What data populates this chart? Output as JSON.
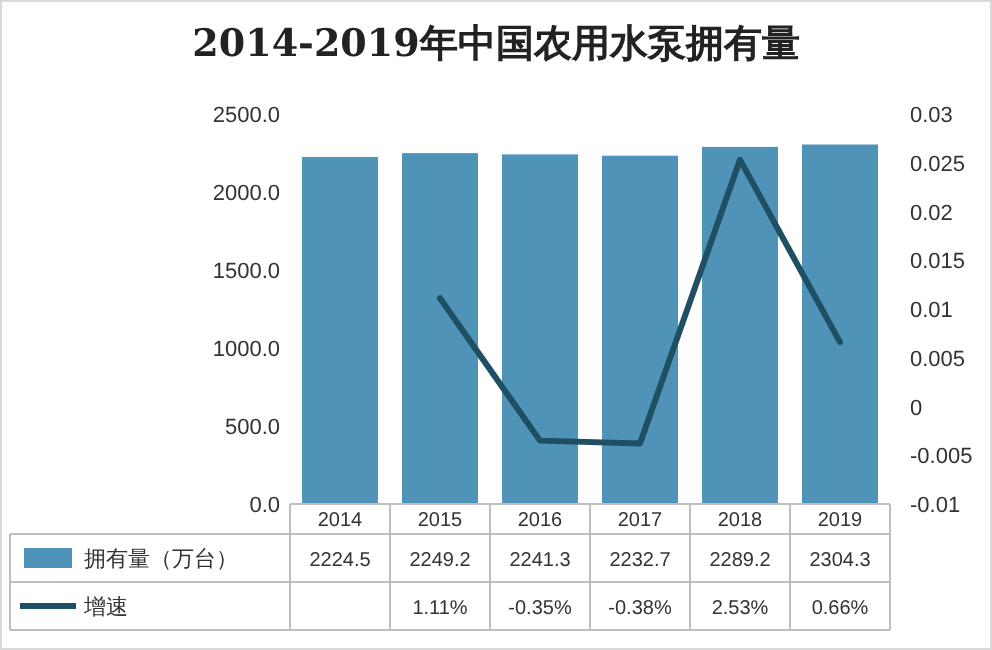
{
  "chart_data": {
    "type": "bar",
    "title": "2014-2019年中国农用水泵拥有量",
    "categories": [
      "2014",
      "2015",
      "2016",
      "2017",
      "2018",
      "2019"
    ],
    "series": [
      {
        "name": "拥有量（万台）",
        "color": "#4f94b8",
        "values": [
          2224.5,
          2249.2,
          2241.3,
          2232.7,
          2289.2,
          2304.3
        ],
        "value_labels": [
          "2224.5",
          "2249.2",
          "2241.3",
          "2232.7",
          "2289.2",
          "2304.3"
        ]
      },
      {
        "name": "增速",
        "type": "line",
        "axis": "y2",
        "color": "#1f4f63",
        "values": [
          null,
          0.0111,
          -0.0035,
          -0.0038,
          0.0253,
          0.0066
        ],
        "value_labels": [
          null,
          "1.11%",
          "-0.35%",
          "-0.38%",
          "2.53%",
          "0.66%"
        ]
      }
    ],
    "ylim": [
      0,
      2500
    ],
    "yticks": [
      {
        "value": 0,
        "label": "0.0"
      },
      {
        "value": 500,
        "label": "500.0"
      },
      {
        "value": 1000,
        "label": "1000.0"
      },
      {
        "value": 1500,
        "label": "1500.0"
      },
      {
        "value": 2000,
        "label": "2000.0"
      },
      {
        "value": 2500,
        "label": "2500.0"
      }
    ],
    "y2lim": [
      -0.01,
      0.03
    ],
    "y2ticks": [
      {
        "value": -0.01,
        "label": "-0.01"
      },
      {
        "value": -0.005,
        "label": "-0.005"
      },
      {
        "value": 0,
        "label": "0"
      },
      {
        "value": 0.005,
        "label": "0.005"
      },
      {
        "value": 0.01,
        "label": "0.01"
      },
      {
        "value": 0.015,
        "label": "0.015"
      },
      {
        "value": 0.02,
        "label": "0.02"
      },
      {
        "value": 0.025,
        "label": "0.025"
      },
      {
        "value": 0.03,
        "label": "0.03"
      }
    ],
    "legend": "bottom"
  }
}
